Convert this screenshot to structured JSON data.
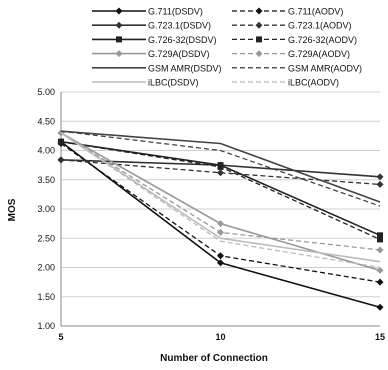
{
  "chart_data": {
    "type": "line",
    "title": "",
    "xlabel": "Number of Connection",
    "ylabel": "MOS",
    "x": [
      5,
      10,
      15
    ],
    "x_tick_labels": [
      "5",
      "10",
      "15"
    ],
    "ylim": [
      1.0,
      5.0
    ],
    "y_ticks": [
      1.0,
      1.5,
      2.0,
      2.5,
      3.0,
      3.5,
      4.0,
      4.5,
      5.0
    ],
    "y_tick_labels": [
      "1.00",
      "1.50",
      "2.00",
      "2.50",
      "3.00",
      "3.50",
      "4.00",
      "4.50",
      "5.00"
    ],
    "grid": "horizontal",
    "legend_position": "top",
    "series": [
      {
        "name": "G.711(DSDV)",
        "values": [
          4.15,
          2.08,
          1.32
        ],
        "color": "#111111",
        "style": "solid",
        "marker": "diamond"
      },
      {
        "name": "G.711(AODV)",
        "values": [
          4.12,
          2.2,
          1.75
        ],
        "color": "#111111",
        "style": "dashed",
        "marker": "diamond"
      },
      {
        "name": "G.723.1(DSDV)",
        "values": [
          3.84,
          3.75,
          3.55
        ],
        "color": "#333333",
        "style": "solid",
        "marker": "diamond"
      },
      {
        "name": "G.723.1(AODV)",
        "values": [
          3.84,
          3.62,
          3.42
        ],
        "color": "#333333",
        "style": "dashed",
        "marker": "diamond"
      },
      {
        "name": "G.726-32(DSDV)",
        "values": [
          4.15,
          3.75,
          2.55
        ],
        "color": "#222222",
        "style": "solid",
        "marker": "square"
      },
      {
        "name": "G.726-32(AODV)",
        "values": [
          4.15,
          3.72,
          2.48
        ],
        "color": "#222222",
        "style": "dashed",
        "marker": "square"
      },
      {
        "name": "G.729A(DSDV)",
        "values": [
          4.3,
          2.75,
          1.95
        ],
        "color": "#999999",
        "style": "solid",
        "marker": "diamond"
      },
      {
        "name": "G.729A(AODV)",
        "values": [
          4.3,
          2.6,
          2.3
        ],
        "color": "#999999",
        "style": "dashed",
        "marker": "diamond"
      },
      {
        "name": "GSM AMR(DSDV)",
        "values": [
          4.33,
          4.12,
          3.12
        ],
        "color": "#444444",
        "style": "solid",
        "marker": "none"
      },
      {
        "name": "GSM AMR(AODV)",
        "values": [
          4.33,
          4.0,
          3.05
        ],
        "color": "#444444",
        "style": "dashed",
        "marker": "none"
      },
      {
        "name": "iLBC(DSDV)",
        "values": [
          4.3,
          2.5,
          2.1
        ],
        "color": "#bbbbbb",
        "style": "solid",
        "marker": "none"
      },
      {
        "name": "iLBC(AODV)",
        "values": [
          4.3,
          2.45,
          2.0
        ],
        "color": "#bbbbbb",
        "style": "dashed",
        "marker": "none"
      }
    ]
  }
}
